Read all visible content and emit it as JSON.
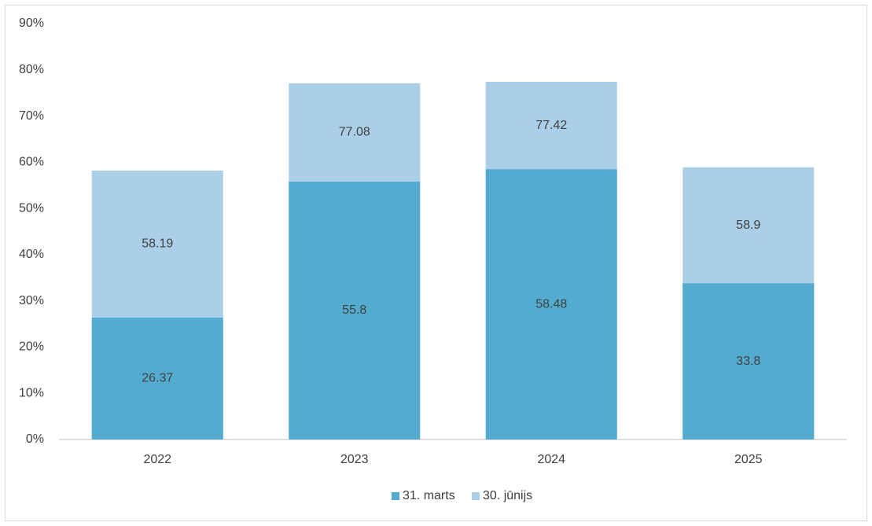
{
  "chart_data": {
    "type": "bar",
    "categories": [
      "2022",
      "2023",
      "2024",
      "2025"
    ],
    "series": [
      {
        "name": "31. marts",
        "color": "#53acd0",
        "values": [
          26.37,
          55.8,
          58.48,
          33.8
        ]
      },
      {
        "name": "30. jūnijs",
        "color": "#abcfe9",
        "values": [
          58.19,
          77.08,
          77.42,
          58.9
        ]
      }
    ],
    "ylim": [
      0,
      90
    ],
    "yticks": [
      {
        "value": 0,
        "label": "0%"
      },
      {
        "value": 10,
        "label": "10%"
      },
      {
        "value": 20,
        "label": "20%"
      },
      {
        "value": 30,
        "label": "30%"
      },
      {
        "value": 40,
        "label": "40%"
      },
      {
        "value": 50,
        "label": "50%"
      },
      {
        "value": 60,
        "label": "60%"
      },
      {
        "value": 70,
        "label": "70%"
      },
      {
        "value": 80,
        "label": "80%"
      },
      {
        "value": 90,
        "label": "90%"
      }
    ],
    "legend": "bottom"
  }
}
